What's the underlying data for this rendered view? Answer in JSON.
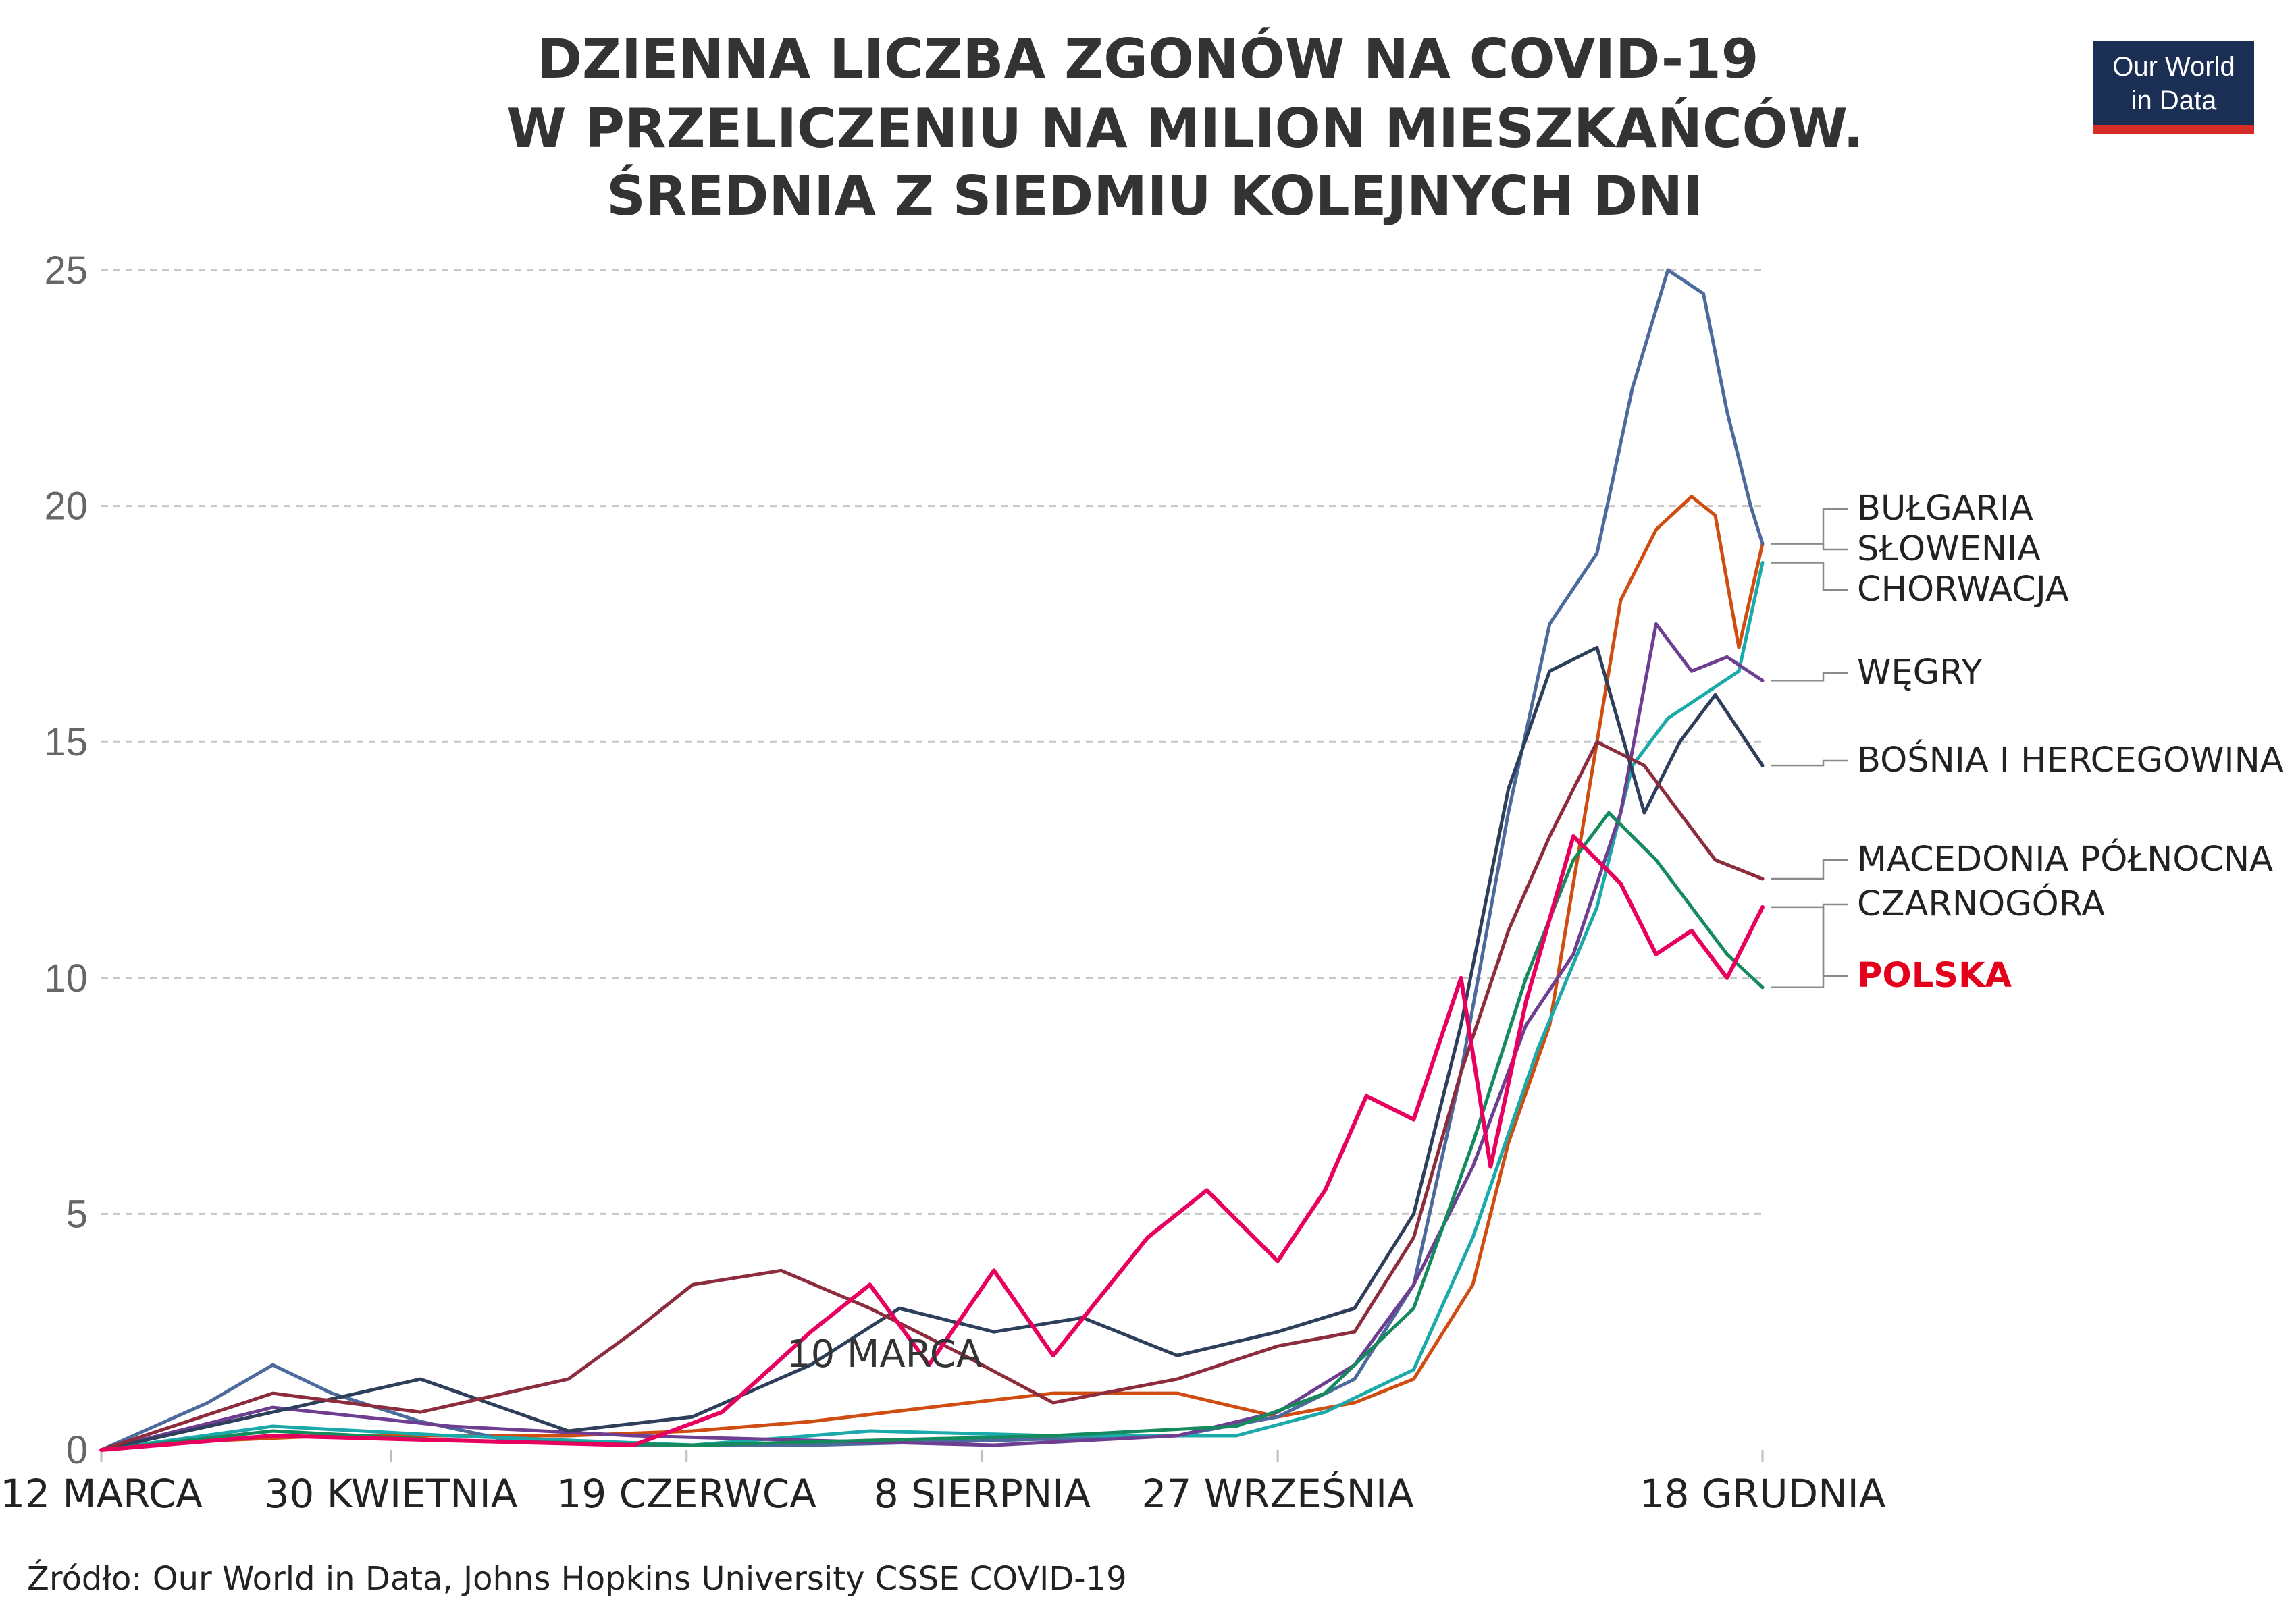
{
  "chart_data": {
    "type": "line",
    "title_lines": [
      "DZIENNA LICZBA ZGONÓW NA COVID-19",
      "W PRZELICZENIU NA MILION  MIESZKAŃCÓW.",
      "ŚREDNIA Z SIEDMIU KOLEJNYCH DNI"
    ],
    "ylim": [
      0,
      25
    ],
    "y_ticks": [
      "0",
      "5",
      "10",
      "15",
      "20",
      "25"
    ],
    "x_ticks": [
      {
        "x": "2020-03-12",
        "label": "12 MARCA"
      },
      {
        "x": "2020-04-30",
        "label": "30 KWIETNIA"
      },
      {
        "x": "2020-06-19",
        "label": "19 CZERWCA"
      },
      {
        "x": "2020-08-08",
        "label": "8 SIERPNIA"
      },
      {
        "x": "2020-09-27",
        "label": "27 WRZEŚNIA"
      },
      {
        "x": "2020-12-18",
        "label": "18 GRUDNIA"
      }
    ],
    "grid": true,
    "annotation": "10 MARCA",
    "series": [
      {
        "name": "BUŁGARIA",
        "color": "#cf4d10",
        "highlight": false,
        "x": [
          "2020-03-12",
          "2020-04-01",
          "2020-04-20",
          "2020-05-10",
          "2020-05-30",
          "2020-06-20",
          "2020-07-10",
          "2020-07-30",
          "2020-08-20",
          "2020-09-10",
          "2020-09-27",
          "2020-10-10",
          "2020-10-20",
          "2020-10-30",
          "2020-11-05",
          "2020-11-12",
          "2020-11-18",
          "2020-11-24",
          "2020-11-30",
          "2020-12-06",
          "2020-12-10",
          "2020-12-14",
          "2020-12-18"
        ],
        "y": [
          0,
          0.2,
          0.3,
          0.3,
          0.3,
          0.4,
          0.6,
          0.9,
          1.2,
          1.2,
          0.7,
          1.0,
          1.5,
          3.5,
          6.5,
          9.0,
          13.5,
          18.0,
          19.5,
          20.2,
          19.8,
          17.0,
          19.2
        ]
      },
      {
        "name": "SŁOWENIA",
        "color": "#4c6a9c",
        "highlight": false,
        "x": [
          "2020-03-12",
          "2020-03-30",
          "2020-04-10",
          "2020-04-20",
          "2020-05-05",
          "2020-05-20",
          "2020-06-10",
          "2020-07-10",
          "2020-08-10",
          "2020-09-10",
          "2020-09-27",
          "2020-10-10",
          "2020-10-20",
          "2020-10-28",
          "2020-11-05",
          "2020-11-12",
          "2020-11-20",
          "2020-11-26",
          "2020-12-02",
          "2020-12-08",
          "2020-12-12",
          "2020-12-16",
          "2020-12-18"
        ],
        "y": [
          0,
          1.0,
          1.8,
          1.2,
          0.6,
          0.2,
          0.1,
          0.1,
          0.2,
          0.3,
          0.7,
          1.5,
          3.5,
          8.0,
          13.5,
          17.5,
          19.0,
          22.5,
          25.0,
          24.5,
          22.0,
          20.0,
          19.2
        ]
      },
      {
        "name": "CHORWACJA",
        "color": "#1ba9a9",
        "highlight": false,
        "x": [
          "2020-03-12",
          "2020-04-10",
          "2020-05-10",
          "2020-06-20",
          "2020-07-20",
          "2020-08-20",
          "2020-09-20",
          "2020-10-05",
          "2020-10-20",
          "2020-10-30",
          "2020-11-10",
          "2020-11-20",
          "2020-11-26",
          "2020-12-02",
          "2020-12-08",
          "2020-12-14",
          "2020-12-18"
        ],
        "y": [
          0,
          0.5,
          0.3,
          0.1,
          0.4,
          0.3,
          0.3,
          0.8,
          1.7,
          4.5,
          8.5,
          11.5,
          14.5,
          15.5,
          16.0,
          16.5,
          18.8
        ]
      },
      {
        "name": "WĘGRY",
        "color": "#6d3e91",
        "highlight": false,
        "x": [
          "2020-03-12",
          "2020-04-10",
          "2020-05-10",
          "2020-06-10",
          "2020-07-10",
          "2020-08-10",
          "2020-09-10",
          "2020-09-27",
          "2020-10-10",
          "2020-10-20",
          "2020-10-30",
          "2020-11-08",
          "2020-11-16",
          "2020-11-24",
          "2020-11-30",
          "2020-12-06",
          "2020-12-12",
          "2020-12-18"
        ],
        "y": [
          0,
          0.9,
          0.5,
          0.3,
          0.2,
          0.1,
          0.3,
          0.8,
          1.8,
          3.5,
          6.0,
          9.0,
          10.5,
          13.5,
          17.5,
          16.5,
          16.8,
          16.3
        ]
      },
      {
        "name": "BOŚNIA I HERCEGOWINA",
        "color": "#2e3f5c",
        "highlight": false,
        "x": [
          "2020-03-12",
          "2020-04-10",
          "2020-05-05",
          "2020-05-30",
          "2020-06-20",
          "2020-07-10",
          "2020-07-25",
          "2020-08-10",
          "2020-08-25",
          "2020-09-10",
          "2020-09-27",
          "2020-10-10",
          "2020-10-20",
          "2020-10-28",
          "2020-11-05",
          "2020-11-12",
          "2020-11-20",
          "2020-11-28",
          "2020-12-04",
          "2020-12-10",
          "2020-12-18"
        ],
        "y": [
          0,
          0.8,
          1.5,
          0.4,
          0.7,
          1.8,
          3.0,
          2.5,
          2.8,
          2.0,
          2.5,
          3.0,
          5.0,
          9.0,
          14.0,
          16.5,
          17.0,
          13.5,
          15.0,
          16.0,
          14.5
        ]
      },
      {
        "name": "MACEDONIA PÓŁNOCNA",
        "color": "#8c2c3c",
        "highlight": false,
        "x": [
          "2020-03-12",
          "2020-04-10",
          "2020-05-05",
          "2020-05-30",
          "2020-06-10",
          "2020-06-20",
          "2020-07-05",
          "2020-07-20",
          "2020-08-05",
          "2020-08-20",
          "2020-09-10",
          "2020-09-27",
          "2020-10-10",
          "2020-10-20",
          "2020-10-28",
          "2020-11-05",
          "2020-11-12",
          "2020-11-20",
          "2020-11-28",
          "2020-12-04",
          "2020-12-10",
          "2020-12-18"
        ],
        "y": [
          0,
          1.2,
          0.8,
          1.5,
          2.5,
          3.5,
          3.8,
          3.0,
          2.0,
          1.0,
          1.5,
          2.2,
          2.5,
          4.5,
          8.0,
          11.0,
          13.0,
          15.0,
          14.5,
          13.5,
          12.5,
          12.1
        ]
      },
      {
        "name": "CZARNOGÓRA",
        "color": "#158a5c",
        "highlight": false,
        "x": [
          "2020-03-12",
          "2020-04-10",
          "2020-05-10",
          "2020-06-20",
          "2020-07-20",
          "2020-08-20",
          "2020-09-20",
          "2020-10-05",
          "2020-10-20",
          "2020-10-30",
          "2020-11-08",
          "2020-11-16",
          "2020-11-22",
          "2020-11-30",
          "2020-12-06",
          "2020-12-12",
          "2020-12-18"
        ],
        "y": [
          0,
          0.4,
          0.2,
          0.1,
          0.2,
          0.3,
          0.5,
          1.2,
          3.0,
          6.5,
          10.0,
          12.5,
          13.5,
          12.5,
          11.5,
          10.5,
          9.8
        ]
      },
      {
        "name": "POLSKA",
        "color": "#e8005f",
        "highlight": true,
        "x": [
          "2020-03-12",
          "2020-04-10",
          "2020-05-10",
          "2020-06-10",
          "2020-06-25",
          "2020-07-10",
          "2020-07-20",
          "2020-07-30",
          "2020-08-10",
          "2020-08-20",
          "2020-09-05",
          "2020-09-15",
          "2020-09-27",
          "2020-10-05",
          "2020-10-12",
          "2020-10-20",
          "2020-10-28",
          "2020-11-02",
          "2020-11-08",
          "2020-11-16",
          "2020-11-24",
          "2020-11-30",
          "2020-12-06",
          "2020-12-12",
          "2020-12-18"
        ],
        "y": [
          0,
          0.3,
          0.2,
          0.1,
          0.8,
          2.5,
          3.5,
          1.8,
          3.8,
          2.0,
          4.5,
          5.5,
          4.0,
          5.5,
          7.5,
          7.0,
          10.0,
          6.0,
          9.5,
          13.0,
          12.0,
          10.5,
          11.0,
          10.0,
          11.5
        ]
      }
    ]
  },
  "source": "Źródło: Our World in Data, Johns Hopkins University CSSE COVID-19",
  "logo": {
    "line1": "Our World",
    "line2": "in Data",
    "bg": "#1b2f55",
    "accent": "#d42c27"
  },
  "highlight_color": "#e3001b"
}
